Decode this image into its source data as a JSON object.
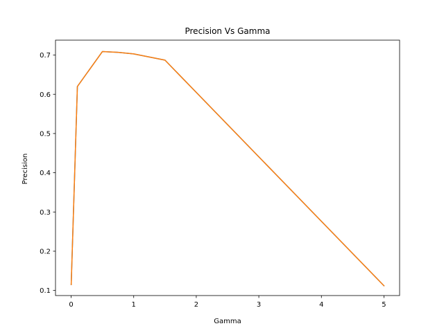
{
  "chart_data": {
    "type": "line",
    "title": "Precision Vs Gamma",
    "xlabel": "Gamma",
    "ylabel": "Precision",
    "xlim": [
      -0.25,
      5.25
    ],
    "ylim": [
      0.087,
      0.738
    ],
    "xticks": [
      0,
      1,
      2,
      3,
      4,
      5
    ],
    "yticks": [
      0.1,
      0.2,
      0.3,
      0.4,
      0.5,
      0.6,
      0.7
    ],
    "grid": false,
    "legend": "none",
    "series": [
      {
        "color": "#1f77b4",
        "x": [
          0.001,
          0.1,
          0.5,
          0.75,
          1,
          1.5,
          5
        ],
        "y": [
          0.115,
          0.62,
          0.709,
          0.707,
          0.703,
          0.687,
          0.112
        ]
      },
      {
        "color": "#ff7f0e",
        "x": [
          0.001,
          0.1,
          0.5,
          0.75,
          1,
          1.5,
          5
        ],
        "y": [
          0.115,
          0.62,
          0.709,
          0.707,
          0.703,
          0.687,
          0.112
        ]
      }
    ]
  }
}
